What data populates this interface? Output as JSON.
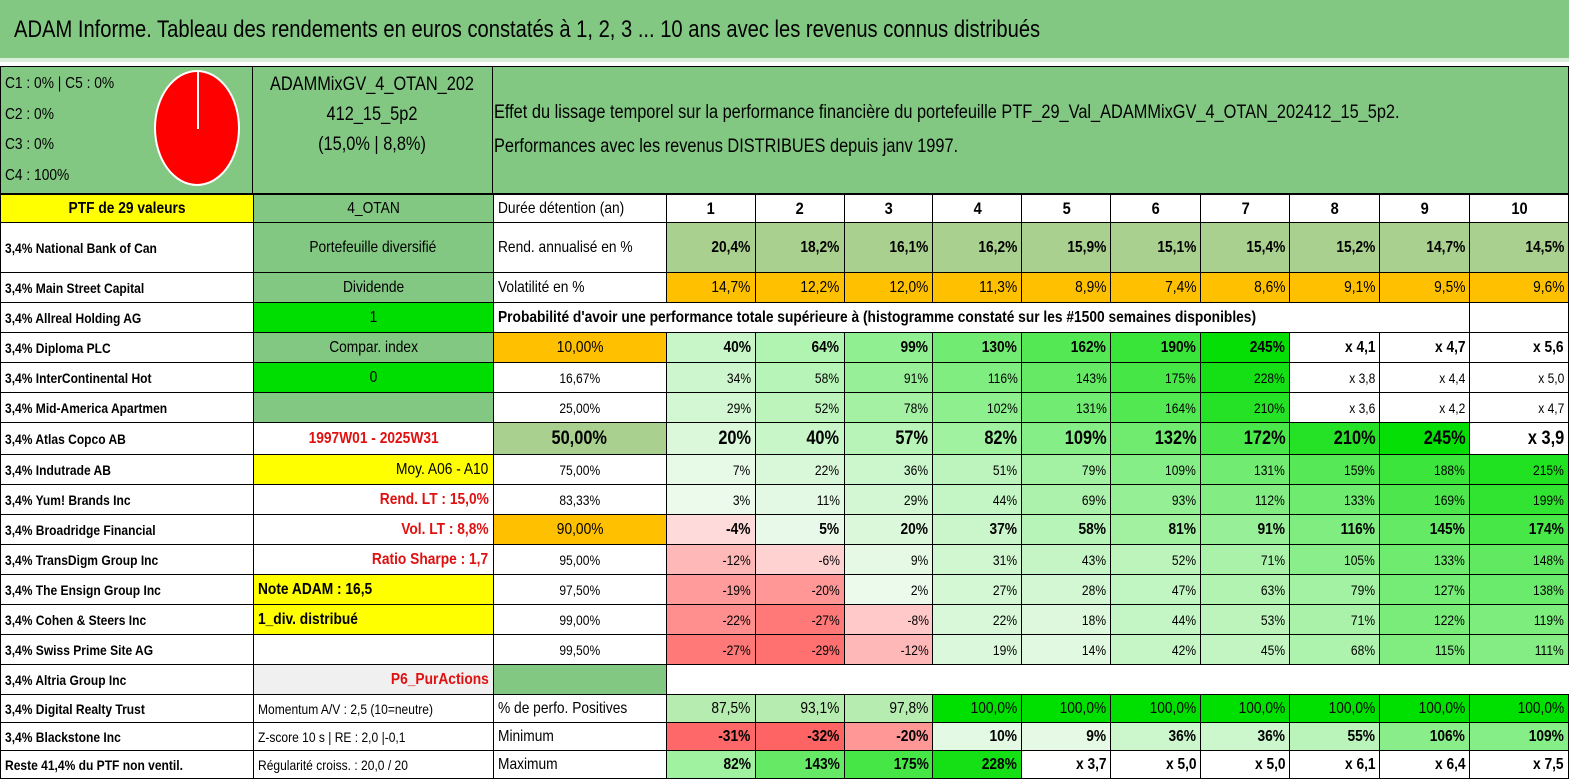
{
  "title": "ADAM Informe. Tableau des rendements en euros constatés à 1, 2, 3 ... 10 ans avec les revenus connus distribués",
  "allocation": {
    "lines": [
      "C1 : 0% | C5 : 0%",
      "C2 : 0%",
      "C3 : 0%",
      "C4 : 100%"
    ],
    "pie_color": "#ff0000"
  },
  "portfolio": {
    "name_line1": "ADAMMixGV_4_OTAN_202",
    "name_line2": "412_15_5p2",
    "name_line3": "(15,0% | 8,8%)"
  },
  "effect": {
    "line1": "Effet du lissage temporel sur la performance financière du portefeuille PTF_29_Val_ADAMMixGV_4_OTAN_202412_15_5p2.",
    "line2": "Performances avec les revenus DISTRIBUES depuis janv 1997."
  },
  "colors": {
    "header_green": "#82c882",
    "yellow": "#ffff00",
    "orange": "#ffc000",
    "bright_green": "#00dd00",
    "red_text": "#e01010"
  },
  "col1": [
    "PTF de 29 valeurs",
    "3,4% National Bank of Can",
    "3,4% Main Street Capital",
    "3,4% Allreal Holding AG",
    "3,4% Diploma PLC",
    "3,4% InterContinental Hot",
    "3,4% Mid-America Apartmen",
    "3,4% Atlas Copco AB",
    "3,4% Indutrade AB",
    "3,4% Yum! Brands Inc",
    "3,4% Broadridge Financial",
    "3,4% TransDigm Group Inc",
    "3,4% The Ensign Group Inc",
    "3,4% Cohen & Steers Inc",
    "3,4% Swiss Prime Site AG",
    "3,4% Altria Group Inc",
    "3,4% Digital Realty Trust",
    "3,4% Blackstone Inc",
    "Reste 41,4% du PTF non ventil."
  ],
  "col2": [
    "4_OTAN",
    "Portefeuille diversifié",
    "Dividende",
    "1",
    "Compar. index",
    "0",
    "",
    "1997W01 - 2025W31",
    "Moy. A06 - A10",
    "Rend. LT : 15,0%",
    "Vol. LT : 8,8%",
    "Ratio Sharpe : 1,7",
    "Note ADAM : 16,5",
    "1_div. distribué",
    "",
    "P6_PurActions",
    "Momentum A/V : 2,5 (10=neutre)",
    "Z-score 10 s | RE : 2,0 |-0,1",
    "Régularité croiss. : 20,0 / 20"
  ],
  "years_label": "Durée détention (an)",
  "years": [
    "1",
    "2",
    "3",
    "4",
    "5",
    "6",
    "7",
    "8",
    "9",
    "10"
  ],
  "rend_label": "Rend. annualisé en %",
  "rend": [
    "20,4%",
    "18,2%",
    "16,1%",
    "16,2%",
    "15,9%",
    "15,1%",
    "15,4%",
    "15,2%",
    "14,7%",
    "14,5%"
  ],
  "vol_label": "Volatilité en %",
  "vol": [
    "14,7%",
    "12,2%",
    "12,0%",
    "11,3%",
    "8,9%",
    "7,4%",
    "8,6%",
    "9,1%",
    "9,5%",
    "9,6%"
  ],
  "prob_label": "Probabilité d'avoir une performance totale supérieure à (histogramme constaté sur les #1500 semaines disponibles)",
  "prob_rows": [
    {
      "p": "10,00%",
      "v": [
        "40%",
        "64%",
        "99%",
        "130%",
        "162%",
        "190%",
        "245%",
        "x 4,1",
        "x 4,7",
        "x 5,6"
      ]
    },
    {
      "p": "16,67%",
      "v": [
        "34%",
        "58%",
        "91%",
        "116%",
        "143%",
        "175%",
        "228%",
        "x 3,8",
        "x 4,4",
        "x 5,0"
      ]
    },
    {
      "p": "25,00%",
      "v": [
        "29%",
        "52%",
        "78%",
        "102%",
        "131%",
        "164%",
        "210%",
        "x 3,6",
        "x 4,2",
        "x 4,7"
      ]
    },
    {
      "p": "50,00%",
      "v": [
        "20%",
        "40%",
        "57%",
        "82%",
        "109%",
        "132%",
        "172%",
        "210%",
        "245%",
        "x 3,9"
      ]
    },
    {
      "p": "75,00%",
      "v": [
        "7%",
        "22%",
        "36%",
        "51%",
        "79%",
        "109%",
        "131%",
        "159%",
        "188%",
        "215%"
      ]
    },
    {
      "p": "83,33%",
      "v": [
        "3%",
        "11%",
        "29%",
        "44%",
        "69%",
        "93%",
        "112%",
        "133%",
        "169%",
        "199%"
      ]
    },
    {
      "p": "90,00%",
      "v": [
        "-4%",
        "5%",
        "20%",
        "37%",
        "58%",
        "81%",
        "91%",
        "116%",
        "145%",
        "174%"
      ]
    },
    {
      "p": "95,00%",
      "v": [
        "-12%",
        "-6%",
        "9%",
        "31%",
        "43%",
        "52%",
        "71%",
        "105%",
        "133%",
        "148%"
      ]
    },
    {
      "p": "97,50%",
      "v": [
        "-19%",
        "-20%",
        "2%",
        "27%",
        "28%",
        "47%",
        "63%",
        "79%",
        "127%",
        "138%"
      ]
    },
    {
      "p": "99,00%",
      "v": [
        "-22%",
        "-27%",
        "-8%",
        "22%",
        "18%",
        "44%",
        "53%",
        "71%",
        "122%",
        "119%"
      ]
    },
    {
      "p": "99,50%",
      "v": [
        "-27%",
        "-29%",
        "-12%",
        "19%",
        "14%",
        "42%",
        "45%",
        "68%",
        "115%",
        "111%"
      ]
    }
  ],
  "pos_label": "% de perfo. Positives",
  "pos": [
    "87,5%",
    "93,1%",
    "97,8%",
    "100,0%",
    "100,0%",
    "100,0%",
    "100,0%",
    "100,0%",
    "100,0%",
    "100,0%"
  ],
  "min_label": "Minimum",
  "min": [
    "-31%",
    "-32%",
    "-20%",
    "10%",
    "9%",
    "36%",
    "36%",
    "55%",
    "106%",
    "109%"
  ],
  "max_label": "Maximum",
  "max": [
    "82%",
    "143%",
    "175%",
    "228%",
    "x 3,7",
    "x 5,0",
    "x 5,0",
    "x 6,1",
    "x 6,4",
    "x 7,5"
  ]
}
